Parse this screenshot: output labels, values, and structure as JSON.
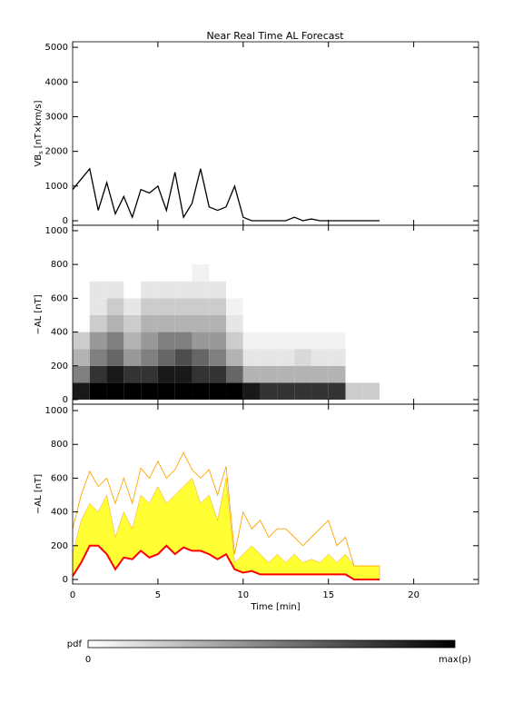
{
  "chart_data": [
    {
      "type": "line",
      "title": "Near Real Time AL Forecast",
      "ylabel": {
        "main": "VB",
        "sub": "s",
        "unit": "[nT×km/s]"
      },
      "x": [
        0,
        0.5,
        1,
        1.5,
        2,
        2.5,
        3,
        3.5,
        4,
        4.5,
        5,
        5.5,
        6,
        6.5,
        7,
        7.5,
        8,
        8.5,
        9,
        9.5,
        10,
        10.5,
        11,
        11.5,
        12,
        12.5,
        13,
        13.5,
        14,
        14.5,
        15,
        15.5,
        16,
        16.5,
        17,
        17.5,
        18
      ],
      "values": [
        900,
        1200,
        1500,
        300,
        1100,
        200,
        700,
        100,
        900,
        800,
        1000,
        300,
        1400,
        100,
        500,
        1500,
        400,
        300,
        400,
        1000,
        100,
        0,
        0,
        0,
        0,
        0,
        100,
        0,
        50,
        0,
        0,
        0,
        0,
        0,
        0,
        0,
        0
      ],
      "color": "#000000",
      "xlim": [
        0,
        23.8
      ],
      "xticks": [
        0,
        5,
        10,
        15,
        20
      ],
      "ylim": [
        -130,
        5160
      ],
      "yticks": [
        0,
        1000,
        2000,
        3000,
        4000,
        5000
      ]
    },
    {
      "type": "heatmap",
      "ylabel": "−AL [nT]",
      "x_edges": [
        0,
        1,
        2,
        3,
        4,
        5,
        6,
        7,
        8,
        9,
        10,
        11,
        12,
        13,
        14,
        15,
        16,
        17,
        18
      ],
      "y_edges": [
        0,
        100,
        200,
        300,
        400,
        500,
        600,
        700,
        800
      ],
      "z": [
        [
          0.9,
          0.5,
          0.3,
          0.2,
          0,
          0,
          0,
          0
        ],
        [
          1,
          0.8,
          0.5,
          0.4,
          0.2,
          0.1,
          0.1,
          0
        ],
        [
          1,
          0.9,
          0.6,
          0.5,
          0.3,
          0.2,
          0.1,
          0
        ],
        [
          1,
          0.8,
          0.4,
          0.3,
          0.2,
          0.1,
          0,
          0
        ],
        [
          1,
          0.8,
          0.5,
          0.4,
          0.3,
          0.2,
          0.1,
          0
        ],
        [
          1,
          0.9,
          0.6,
          0.5,
          0.3,
          0.2,
          0.1,
          0
        ],
        [
          1,
          0.9,
          0.7,
          0.5,
          0.3,
          0.2,
          0.1,
          0
        ],
        [
          1,
          0.8,
          0.6,
          0.4,
          0.3,
          0.2,
          0.1,
          0.05
        ],
        [
          1,
          0.8,
          0.5,
          0.4,
          0.3,
          0.2,
          0.1,
          0
        ],
        [
          1,
          0.6,
          0.3,
          0.2,
          0.1,
          0.05,
          0,
          0
        ],
        [
          0.9,
          0.3,
          0.1,
          0.05,
          0,
          0,
          0,
          0
        ],
        [
          0.8,
          0.3,
          0.1,
          0.05,
          0,
          0,
          0,
          0
        ],
        [
          0.8,
          0.3,
          0.1,
          0.05,
          0,
          0,
          0,
          0
        ],
        [
          0.8,
          0.3,
          0.15,
          0.05,
          0,
          0,
          0,
          0
        ],
        [
          0.8,
          0.3,
          0.1,
          0.05,
          0,
          0,
          0,
          0
        ],
        [
          0.8,
          0.3,
          0.1,
          0.05,
          0,
          0,
          0,
          0
        ],
        [
          0.2,
          0,
          0,
          0,
          0,
          0,
          0,
          0
        ],
        [
          0.2,
          0,
          0,
          0,
          0,
          0,
          0,
          0
        ]
      ],
      "xlim": [
        0,
        23.8
      ],
      "xticks": [
        0,
        5,
        10,
        15,
        20
      ],
      "ylim": [
        -27,
        1032
      ],
      "yticks": [
        0,
        200,
        400,
        600,
        800,
        1000
      ]
    },
    {
      "type": "band",
      "ylabel": "−AL [nT]",
      "xlabel": "Time [min]",
      "x": [
        0,
        0.5,
        1,
        1.5,
        2,
        2.5,
        3,
        3.5,
        4,
        4.5,
        5,
        5.5,
        6,
        6.5,
        7,
        7.5,
        8,
        8.5,
        9,
        9.5,
        10,
        10.5,
        11,
        11.5,
        12,
        12.5,
        13,
        13.5,
        14,
        14.5,
        15,
        15.5,
        16,
        16.5,
        17,
        17.5,
        18
      ],
      "max": {
        "color": "#ffa500",
        "values": [
          300,
          500,
          640,
          550,
          600,
          450,
          600,
          450,
          660,
          600,
          700,
          600,
          650,
          750,
          650,
          600,
          650,
          500,
          670,
          150,
          400,
          300,
          350,
          250,
          300,
          300,
          250,
          200,
          250,
          300,
          350,
          200,
          250,
          80,
          80,
          80,
          80
        ]
      },
      "upper": {
        "color": "#ffff33",
        "values": [
          150,
          350,
          450,
          400,
          500,
          250,
          400,
          300,
          500,
          450,
          550,
          450,
          500,
          550,
          600,
          450,
          500,
          350,
          600,
          100,
          150,
          200,
          150,
          100,
          150,
          100,
          150,
          100,
          120,
          100,
          150,
          100,
          150,
          80,
          80,
          80,
          80
        ]
      },
      "median": {
        "color": "#ff0000",
        "values": [
          20,
          100,
          200,
          200,
          150,
          60,
          130,
          120,
          170,
          130,
          150,
          200,
          150,
          190,
          170,
          170,
          150,
          120,
          150,
          60,
          40,
          50,
          30,
          30,
          30,
          30,
          30,
          30,
          30,
          30,
          30,
          30,
          30,
          0,
          0,
          0,
          0
        ]
      },
      "xlim": [
        0,
        23.8
      ],
      "xticks": [
        0,
        5,
        10,
        15,
        20
      ],
      "ylim": [
        -27,
        1038
      ],
      "yticks": [
        0,
        200,
        400,
        600,
        800,
        1000
      ]
    }
  ],
  "colorbar": {
    "label": "pdf",
    "min_label": "0",
    "max_label": "max(p)"
  }
}
